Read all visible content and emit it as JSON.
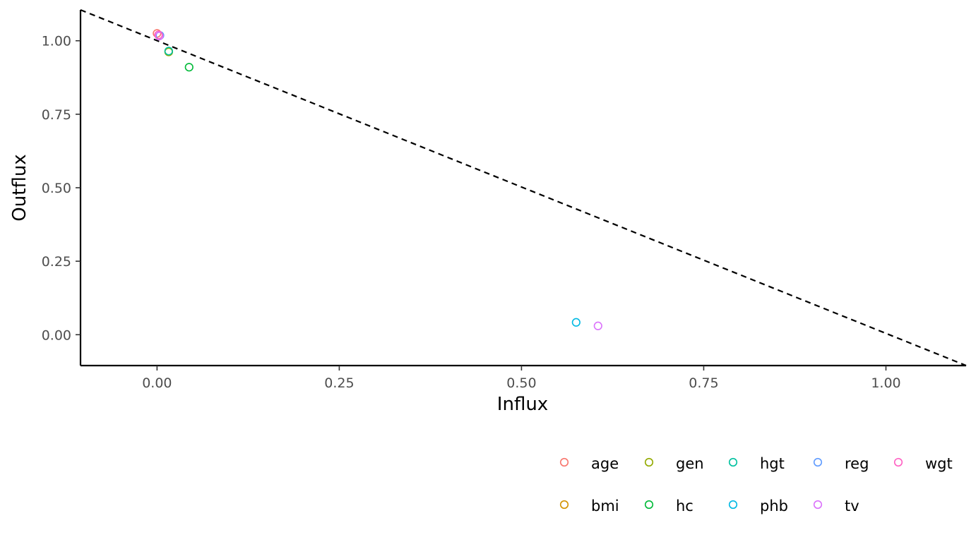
{
  "chart_data": {
    "type": "scatter",
    "title": "",
    "xlabel": "Influx",
    "ylabel": "Outflux",
    "xlim": [
      -0.105,
      1.11
    ],
    "ylim": [
      -0.105,
      1.105
    ],
    "x_ticks": [
      0.0,
      0.25,
      0.5,
      0.75,
      1.0
    ],
    "x_tick_labels": [
      "0.00",
      "0.25",
      "0.50",
      "0.75",
      "1.00"
    ],
    "y_ticks": [
      0.0,
      0.25,
      0.5,
      0.75,
      1.0
    ],
    "y_tick_labels": [
      "0.00",
      "0.25",
      "0.50",
      "0.75",
      "1.00"
    ],
    "grid": false,
    "reference_line": {
      "style": "dashed",
      "from": [
        -0.105,
        1.105
      ],
      "to": [
        1.11,
        -0.105
      ]
    },
    "legend_position": "bottom-right",
    "series": [
      {
        "name": "age",
        "color": "#F8766D",
        "points": [
          [
            0.0,
            1.025
          ]
        ]
      },
      {
        "name": "bmi",
        "color": "#D39200",
        "points": [
          [
            0.016,
            0.963
          ]
        ]
      },
      {
        "name": "gen",
        "color": "#93AA00",
        "points": [
          [
            0.016,
            0.962
          ]
        ]
      },
      {
        "name": "hc",
        "color": "#00BA38",
        "points": [
          [
            0.044,
            0.91
          ]
        ]
      },
      {
        "name": "hgt",
        "color": "#00C19F",
        "points": [
          [
            0.016,
            0.965
          ]
        ]
      },
      {
        "name": "phb",
        "color": "#00B9E3",
        "points": [
          [
            0.575,
            0.042
          ]
        ]
      },
      {
        "name": "reg",
        "color": "#619CFF",
        "points": [
          [
            0.004,
            1.018
          ]
        ]
      },
      {
        "name": "tv",
        "color": "#DB72FB",
        "points": [
          [
            0.605,
            0.03
          ],
          [
            0.003,
            1.016
          ]
        ]
      },
      {
        "name": "wgt",
        "color": "#FF61C3",
        "points": [
          [
            0.002,
            1.02
          ]
        ]
      }
    ]
  }
}
